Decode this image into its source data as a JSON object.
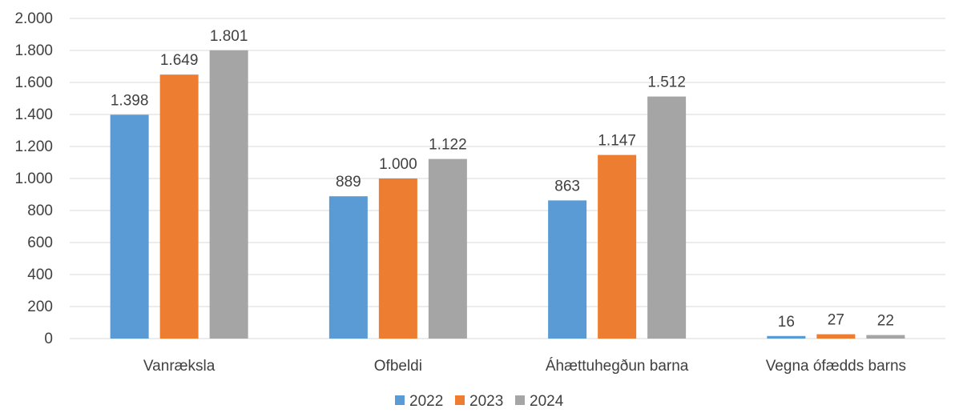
{
  "chart_data": {
    "type": "bar",
    "categories": [
      "Vanræksla",
      "Ofbeldi",
      "Áhættuhegðun barna",
      "Vegna ófædds barns"
    ],
    "series": [
      {
        "name": "2022",
        "color": "#5B9BD5",
        "values": [
          1398,
          889,
          863,
          16
        ],
        "labels": [
          "1.398",
          "889",
          "863",
          "16"
        ]
      },
      {
        "name": "2023",
        "color": "#ED7D31",
        "values": [
          1649,
          1000,
          1147,
          27
        ],
        "labels": [
          "1.649",
          "1.000",
          "1.147",
          "27"
        ]
      },
      {
        "name": "2024",
        "color": "#A5A5A5",
        "values": [
          1801,
          1122,
          1512,
          22
        ],
        "labels": [
          "1.801",
          "1.122",
          "1.512",
          "22"
        ]
      }
    ],
    "yticks": [
      {
        "value": 0,
        "label": "0"
      },
      {
        "value": 200,
        "label": "200"
      },
      {
        "value": 400,
        "label": "400"
      },
      {
        "value": 600,
        "label": "600"
      },
      {
        "value": 800,
        "label": "800"
      },
      {
        "value": 1000,
        "label": "1.000"
      },
      {
        "value": 1200,
        "label": "1.200"
      },
      {
        "value": 1400,
        "label": "1.400"
      },
      {
        "value": 1600,
        "label": "1.600"
      },
      {
        "value": 1800,
        "label": "1.800"
      },
      {
        "value": 2000,
        "label": "2.000"
      }
    ],
    "ylim": [
      0,
      2000
    ],
    "title": "",
    "xlabel": "",
    "ylabel": "",
    "grid": true,
    "gridline_color": "#D9D9D9",
    "legend_position": "bottom"
  }
}
